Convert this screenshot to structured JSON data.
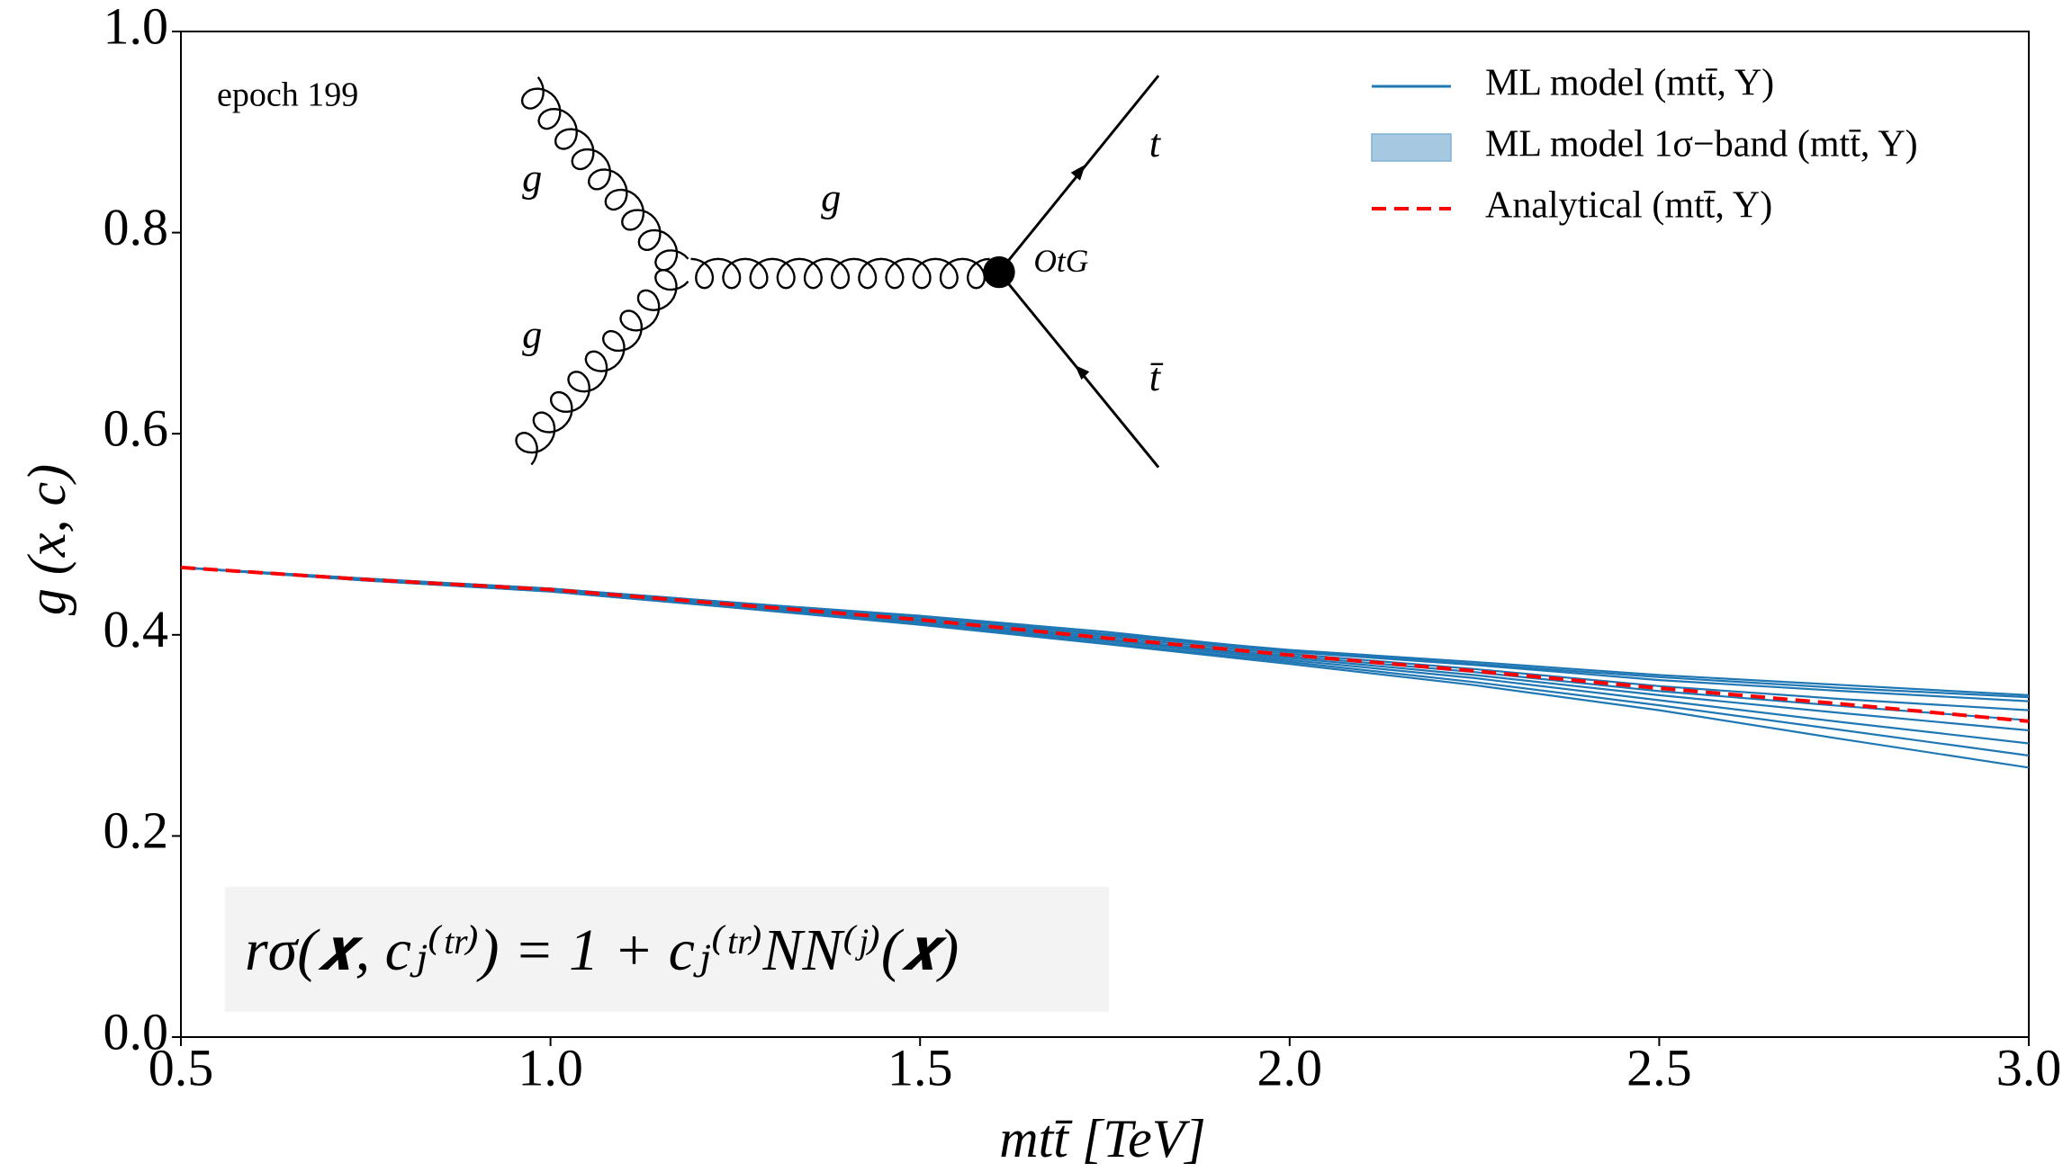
{
  "chart_data": {
    "type": "line",
    "xlabel": "mtt̄ [TeV]",
    "ylabel": "g (x, c)",
    "annotation": "epoch 199",
    "formula": "rσ(𝒙, cⱼ⁽ᵗʳ⁾) = 1 + cⱼ⁽ᵗʳ⁾NN⁽ʲ⁾(𝒙)",
    "diagram_labels": [
      "g",
      "g",
      "g",
      "t",
      "t̄",
      "OtG"
    ],
    "x": [
      0.5,
      0.75,
      1,
      1.25,
      1.5,
      1.75,
      2,
      2.25,
      2.5,
      2.75,
      3
    ],
    "xlim": [
      0.5,
      3
    ],
    "ylim": [
      0,
      1
    ],
    "xticks": [
      0.5,
      {
        "value": 1,
        "label": "1.0"
      },
      1.5,
      {
        "value": 2,
        "label": "2.0"
      },
      2.5,
      {
        "value": 3,
        "label": "3.0"
      }
    ],
    "yticks": [
      {
        "value": 0,
        "label": "0.0"
      },
      0.2,
      0.4,
      0.6,
      0.8,
      {
        "value": 1,
        "label": "1.0"
      }
    ],
    "legend": "upper right",
    "series": [
      {
        "name": "ML model (mtt̄, Y)",
        "color": "#1f77b4",
        "replicas": [
          [
            0.467,
            0.456,
            0.446,
            0.432,
            0.418,
            0.401,
            0.385,
            0.373,
            0.36,
            0.35,
            0.34
          ],
          [
            0.467,
            0.455,
            0.445,
            0.431,
            0.417,
            0.4,
            0.383,
            0.37,
            0.355,
            0.344,
            0.334
          ],
          [
            0.467,
            0.455,
            0.445,
            0.43,
            0.415,
            0.398,
            0.381,
            0.366,
            0.349,
            0.336,
            0.325
          ],
          [
            0.467,
            0.455,
            0.444,
            0.429,
            0.414,
            0.396,
            0.379,
            0.363,
            0.344,
            0.329,
            0.315
          ],
          [
            0.467,
            0.455,
            0.444,
            0.429,
            0.413,
            0.395,
            0.377,
            0.36,
            0.34,
            0.322,
            0.305
          ],
          [
            0.467,
            0.454,
            0.444,
            0.428,
            0.412,
            0.394,
            0.375,
            0.357,
            0.335,
            0.313,
            0.292
          ],
          [
            0.467,
            0.454,
            0.443,
            0.427,
            0.411,
            0.392,
            0.373,
            0.353,
            0.33,
            0.305,
            0.28
          ],
          [
            0.467,
            0.454,
            0.443,
            0.427,
            0.41,
            0.391,
            0.371,
            0.35,
            0.325,
            0.296,
            0.268
          ],
          [
            0.467,
            0.456,
            0.446,
            0.432,
            0.419,
            0.403,
            0.384,
            0.371,
            0.358,
            0.347,
            0.338
          ]
        ]
      },
      {
        "name": "ML model 1σ−band (mtt̄, Y)",
        "color": "#a6c8e0"
      },
      {
        "name": "Analytical (mtt̄, Y)",
        "color": "#ff0000",
        "dashed": true,
        "values": [
          0.467,
          0.455,
          0.445,
          0.43,
          0.415,
          0.397,
          0.38,
          0.364,
          0.347,
          0.331,
          0.314
        ]
      }
    ]
  }
}
